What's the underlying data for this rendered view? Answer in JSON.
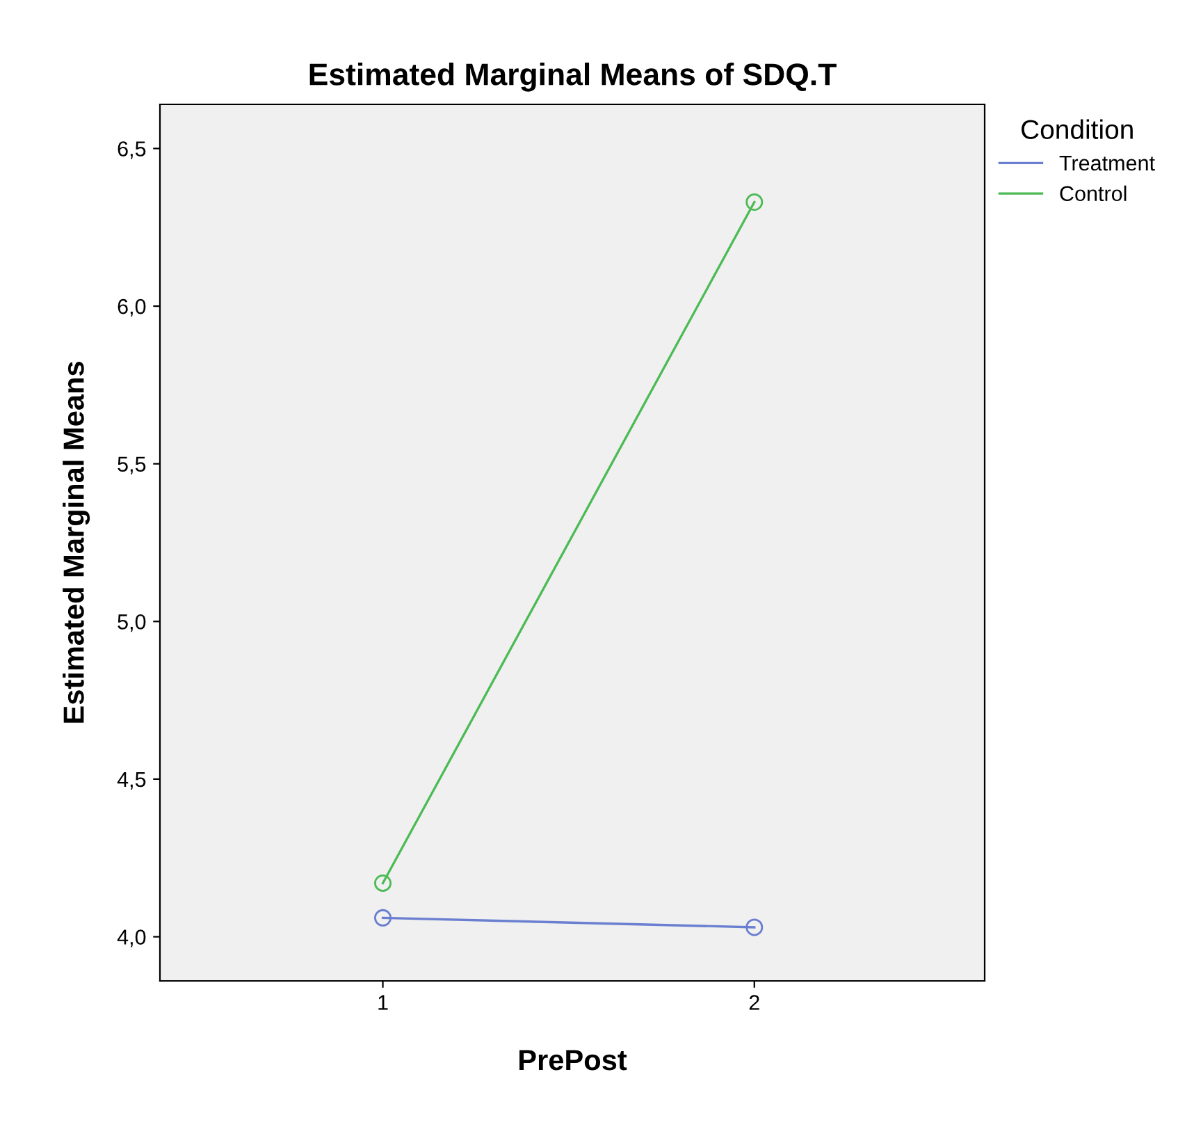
{
  "chart_data": {
    "type": "line",
    "title": "Estimated Marginal Means of SDQ.T",
    "xlabel": "PrePost",
    "ylabel": "Estimated Marginal Means",
    "legend_title": "Condition",
    "x": [
      1,
      2
    ],
    "series": [
      {
        "name": "Treatment",
        "color": "#6a7fd0",
        "values": [
          4.06,
          4.03
        ]
      },
      {
        "name": "Control",
        "color": "#4cbb55",
        "values": [
          4.17,
          6.33
        ]
      }
    ],
    "xlim": [
      0.4,
      2.62
    ],
    "xticks": [
      1,
      2
    ],
    "ylim": [
      3.86,
      6.64
    ],
    "yticks": [
      {
        "value": 4.0,
        "label": "4,0"
      },
      {
        "value": 4.5,
        "label": "4,5"
      },
      {
        "value": 5.0,
        "label": "5,0"
      },
      {
        "value": 5.5,
        "label": "5,5"
      },
      {
        "value": 6.0,
        "label": "6,0"
      },
      {
        "value": 6.5,
        "label": "6,5"
      }
    ],
    "grid": false,
    "legend": "top right",
    "marker": "circle",
    "line_style": "solid"
  }
}
